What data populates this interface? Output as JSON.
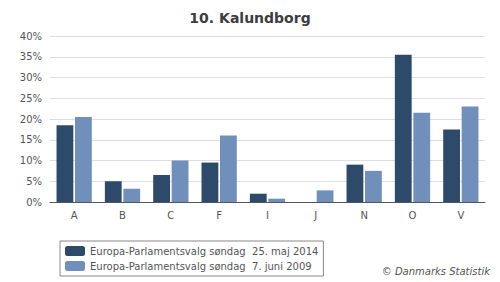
{
  "chart_data": {
    "type": "bar",
    "title": "10. Kalundborg",
    "categories": [
      "A",
      "B",
      "C",
      "F",
      "I",
      "J",
      "N",
      "O",
      "V"
    ],
    "series": [
      {
        "name": "Europa-Parlamentsvalg søndag  25. maj 2014",
        "color": "#2e4a6b",
        "values": [
          18.5,
          5.0,
          6.5,
          9.5,
          2.0,
          0.0,
          9.0,
          35.5,
          17.5
        ]
      },
      {
        "name": "Europa-Parlamentsvalg søndag  7. juni 2009",
        "color": "#7090bb",
        "values": [
          20.5,
          3.2,
          10.0,
          16.0,
          0.8,
          2.8,
          7.5,
          21.5,
          23.0
        ]
      }
    ],
    "ylim": [
      0,
      40
    ],
    "yticks": [
      {
        "value": 0,
        "label": "0%"
      },
      {
        "value": 5,
        "label": "5%"
      },
      {
        "value": 10,
        "label": "10%"
      },
      {
        "value": 15,
        "label": "15%"
      },
      {
        "value": 20,
        "label": "20%"
      },
      {
        "value": 25,
        "label": "25%"
      },
      {
        "value": 30,
        "label": "30%"
      },
      {
        "value": 35,
        "label": "35%"
      },
      {
        "value": 40,
        "label": "40%"
      }
    ],
    "grid": true,
    "legend": "bottom",
    "annotations": [
      "© Danmarks Statistik"
    ]
  }
}
